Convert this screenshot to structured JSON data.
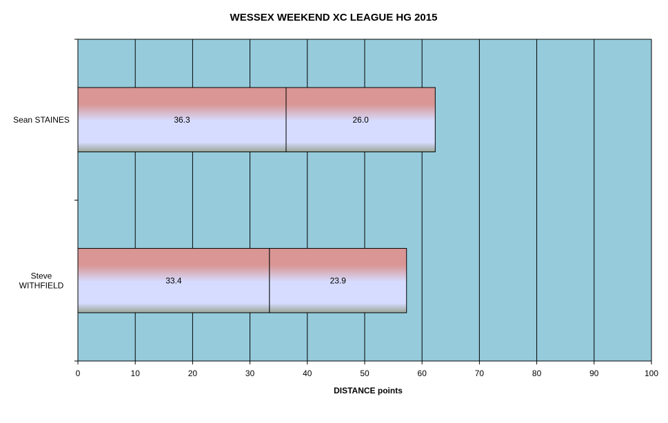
{
  "chart_data": {
    "type": "bar",
    "orientation": "horizontal",
    "stacked": true,
    "title": "WESSEX WEEKEND XC LEAGUE HG 2015",
    "xlabel": "DISTANCE  points",
    "ylabel": "",
    "xlim": [
      0,
      100
    ],
    "xticks": [
      "0",
      "10",
      "20",
      "30",
      "40",
      "50",
      "60",
      "70",
      "80",
      "90",
      "100"
    ],
    "grid": true,
    "legend": "none",
    "categories": [
      {
        "lines": [
          "Sean STAINES"
        ]
      },
      {
        "lines": [
          "Steve",
          "WITHFIELD"
        ]
      }
    ],
    "series": [
      {
        "values": [
          36.3,
          33.4
        ],
        "labels": [
          "36.3",
          "33.4"
        ]
      },
      {
        "values": [
          26.0,
          23.9
        ],
        "labels": [
          "26.0",
          "23.9"
        ]
      }
    ],
    "colors": {
      "plot_background": "#96cbdc",
      "bar_top": "#d99694",
      "bar_middle": "#d6dcff",
      "bar_bottom": "#9aa596",
      "grid": "#000000"
    }
  }
}
